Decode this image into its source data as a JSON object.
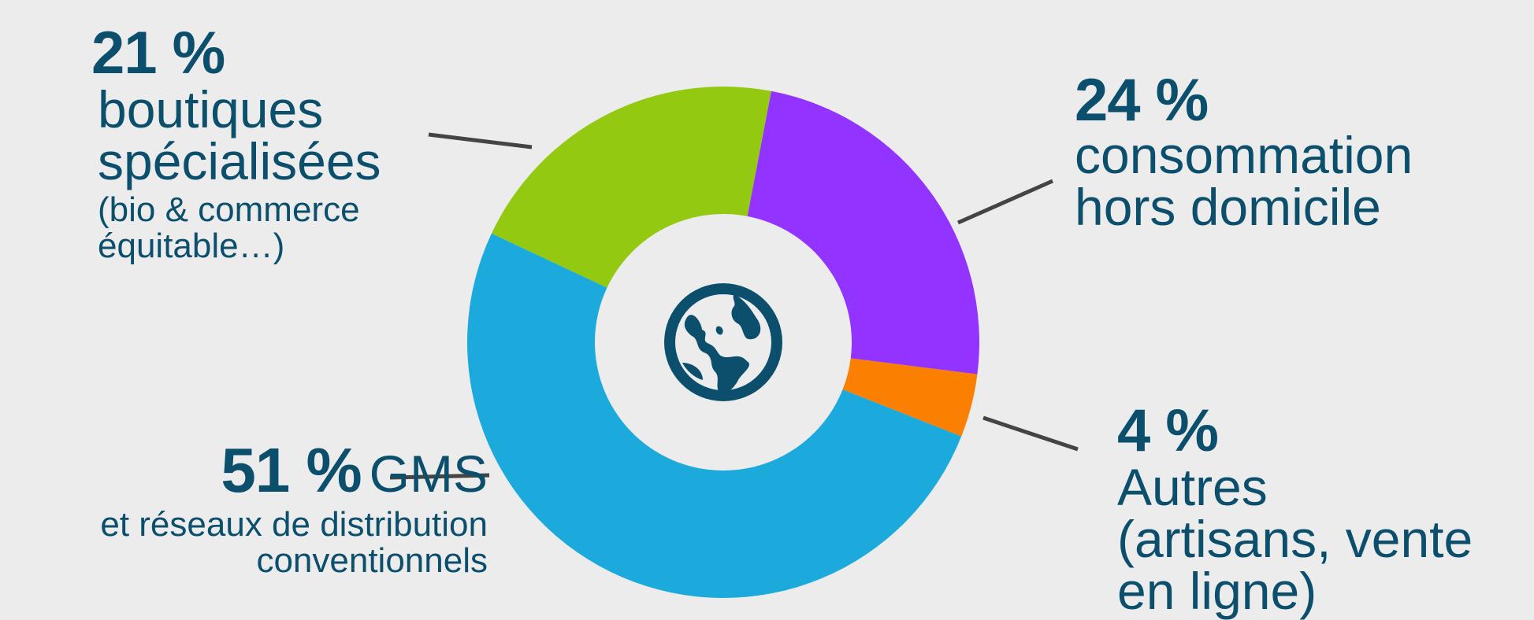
{
  "chart_data": {
    "type": "pie",
    "donut": true,
    "center_icon": "globe-icon",
    "slices": [
      {
        "value": 24,
        "pct_label": "24 %",
        "lines": [
          "consommation",
          "hors domicile"
        ],
        "detail": [],
        "color": "#9233ff"
      },
      {
        "value": 4,
        "pct_label": "4 %",
        "lines": [
          "Autres",
          "(artisans, vente",
          "en ligne)"
        ],
        "detail": [],
        "color": "#fb8001"
      },
      {
        "value": 51,
        "pct_label": "51 %",
        "lines": [
          "GMS"
        ],
        "detail": [
          "et réseaux de distribution",
          "conventionnels"
        ],
        "color": "#1caadd"
      },
      {
        "value": 21,
        "pct_label": "21 %",
        "lines": [
          "boutiques",
          "spécialisées"
        ],
        "detail": [
          "(bio & commerce",
          "équitable…)"
        ],
        "color": "#94c912"
      }
    ]
  },
  "colors": {
    "background": "#ececec",
    "text": "#0c4f6c",
    "leader_line": "#444444",
    "icon": "#0c4f6c"
  }
}
